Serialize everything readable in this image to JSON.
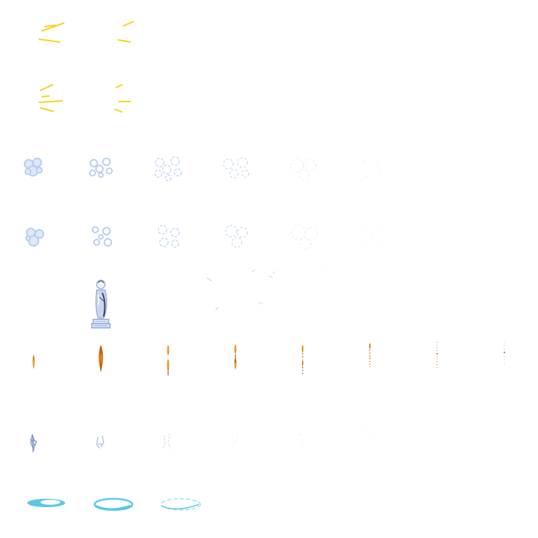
{
  "sprite_sheet": {
    "background": "#ffffff",
    "grid": {
      "columns": 8,
      "rows": 8
    },
    "palette": {
      "spark_yellow": "#f5d21a",
      "spark_yellow_light": "#fbe86a",
      "smoke_blue": "#b9cdf0",
      "smoke_blue_pale": "#dfe8f8",
      "statue_stone": "#9fb1d6",
      "statue_shadow": "#34415e",
      "statue_highlight": "#eef3fc",
      "pedestal_blue": "#8aa3d8",
      "flame_orange": "#d97a10",
      "flame_yellow": "#f4c430",
      "flame_dark": "#8a3a06",
      "shard_blue": "#8ea3c9",
      "ripple_cyan": "#5ac9e6",
      "ripple_cyan_light": "#9fe0f0"
    },
    "rows": [
      {
        "name": "spark-burst-row-a",
        "icon": "spark-burst-icon",
        "frames": 2
      },
      {
        "name": "spark-burst-row-b",
        "icon": "spark-burst-icon",
        "frames": 2
      },
      {
        "name": "smoke-puff-row-a",
        "icon": "smoke-cloud-icon",
        "frames": 6
      },
      {
        "name": "smoke-puff-row-b",
        "icon": "smoke-cloud-icon",
        "frames": 6
      },
      {
        "name": "statue-row",
        "icon": "stone-statue-icon",
        "frames": 5
      },
      {
        "name": "flame-row",
        "icon": "fire-flame-icon",
        "frames": 8
      },
      {
        "name": "ice-shard-row",
        "icon": "ice-shard-icon",
        "frames": 6
      },
      {
        "name": "water-ripple-row",
        "icon": "water-ripple-icon",
        "frames": 3
      }
    ]
  }
}
